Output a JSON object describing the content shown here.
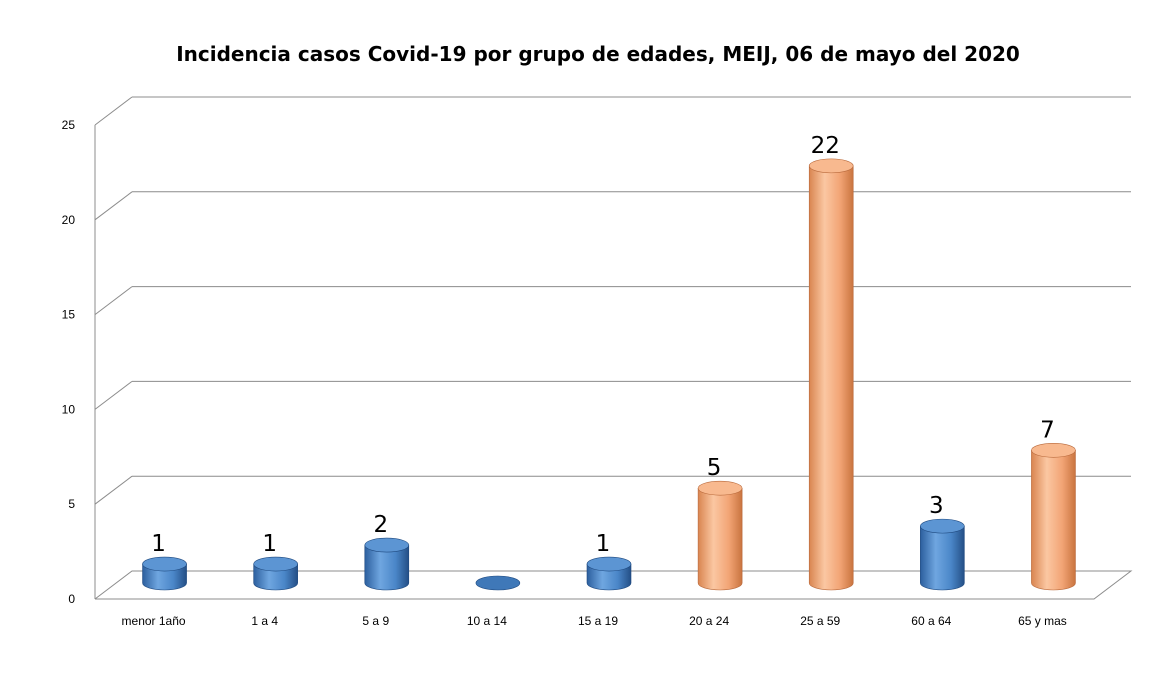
{
  "chart_data": {
    "type": "bar",
    "title": "Incidencia casos Covid-19 por grupo de edades, MEIJ, 06 de mayo del 2020",
    "xlabel": "",
    "ylabel": "",
    "ylim": [
      0,
      25
    ],
    "yticks": [
      "0",
      "5",
      "10",
      "15",
      "20",
      "25"
    ],
    "grid": true,
    "categories": [
      "menor 1año",
      "1 a 4",
      "5 a 9",
      "10 a 14",
      "15 a 19",
      "20 a 24",
      "25 a 59",
      "60 a 64",
      "65 y mas"
    ],
    "values": [
      1,
      1,
      2,
      0,
      1,
      5,
      22,
      3,
      7
    ],
    "data_labels": [
      "1",
      "1",
      "2",
      "",
      "1",
      "5",
      "22",
      "3",
      "7"
    ],
    "bar_colors": [
      "#4a86c8",
      "#4a86c8",
      "#4a86c8",
      "#4a86c8",
      "#4a86c8",
      "#f2a475",
      "#f2a475",
      "#4a86c8",
      "#f2a475"
    ]
  },
  "colors": {
    "blue": "#4a86c8",
    "orange": "#f2a475",
    "grid": "#8c8c8c"
  }
}
